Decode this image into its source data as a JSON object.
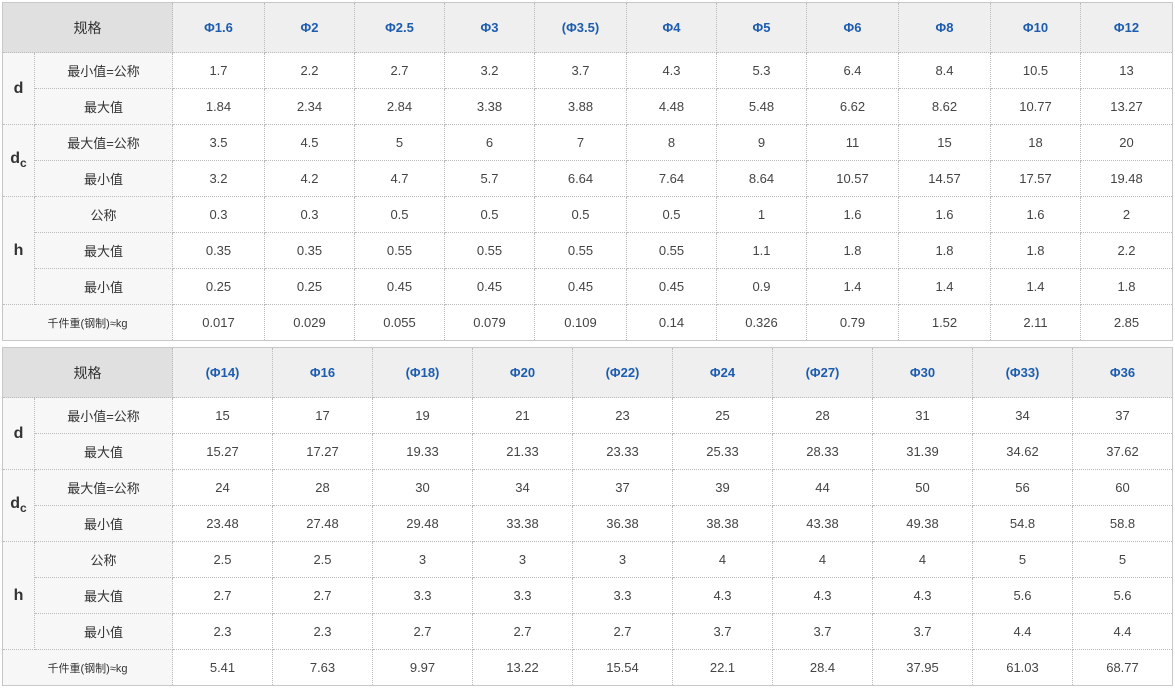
{
  "label_header": "规格",
  "groups": [
    {
      "symbol": "d",
      "sub": "",
      "rows": [
        "最小值=公称",
        "最大值"
      ]
    },
    {
      "symbol": "d",
      "sub": "c",
      "rows": [
        "最大值=公称",
        "最小值"
      ]
    },
    {
      "symbol": "h",
      "sub": "",
      "rows": [
        "公称",
        "最大值",
        "最小值"
      ]
    }
  ],
  "weight_label": "千件重(钢制)≈kg",
  "tables": [
    {
      "sizes": [
        "Φ1.6",
        "Φ2",
        "Φ2.5",
        "Φ3",
        "(Φ3.5)",
        "Φ4",
        "Φ5",
        "Φ6",
        "Φ8",
        "Φ10",
        "Φ12"
      ],
      "rows": [
        [
          "1.7",
          "2.2",
          "2.7",
          "3.2",
          "3.7",
          "4.3",
          "5.3",
          "6.4",
          "8.4",
          "10.5",
          "13"
        ],
        [
          "1.84",
          "2.34",
          "2.84",
          "3.38",
          "3.88",
          "4.48",
          "5.48",
          "6.62",
          "8.62",
          "10.77",
          "13.27"
        ],
        [
          "3.5",
          "4.5",
          "5",
          "6",
          "7",
          "8",
          "9",
          "11",
          "15",
          "18",
          "20"
        ],
        [
          "3.2",
          "4.2",
          "4.7",
          "5.7",
          "6.64",
          "7.64",
          "8.64",
          "10.57",
          "14.57",
          "17.57",
          "19.48"
        ],
        [
          "0.3",
          "0.3",
          "0.5",
          "0.5",
          "0.5",
          "0.5",
          "1",
          "1.6",
          "1.6",
          "1.6",
          "2"
        ],
        [
          "0.35",
          "0.35",
          "0.55",
          "0.55",
          "0.55",
          "0.55",
          "1.1",
          "1.8",
          "1.8",
          "1.8",
          "2.2"
        ],
        [
          "0.25",
          "0.25",
          "0.45",
          "0.45",
          "0.45",
          "0.45",
          "0.9",
          "1.4",
          "1.4",
          "1.4",
          "1.8"
        ],
        [
          "0.017",
          "0.029",
          "0.055",
          "0.079",
          "0.109",
          "0.14",
          "0.326",
          "0.79",
          "1.52",
          "2.11",
          "2.85"
        ]
      ]
    },
    {
      "sizes": [
        "(Φ14)",
        "Φ16",
        "(Φ18)",
        "Φ20",
        "(Φ22)",
        "Φ24",
        "(Φ27)",
        "Φ30",
        "(Φ33)",
        "Φ36"
      ],
      "rows": [
        [
          "15",
          "17",
          "19",
          "21",
          "23",
          "25",
          "28",
          "31",
          "34",
          "37"
        ],
        [
          "15.27",
          "17.27",
          "19.33",
          "21.33",
          "23.33",
          "25.33",
          "28.33",
          "31.39",
          "34.62",
          "37.62"
        ],
        [
          "24",
          "28",
          "30",
          "34",
          "37",
          "39",
          "44",
          "50",
          "56",
          "60"
        ],
        [
          "23.48",
          "27.48",
          "29.48",
          "33.38",
          "36.38",
          "38.38",
          "43.38",
          "49.38",
          "54.8",
          "58.8"
        ],
        [
          "2.5",
          "2.5",
          "3",
          "3",
          "3",
          "4",
          "4",
          "4",
          "5",
          "5"
        ],
        [
          "2.7",
          "2.7",
          "3.3",
          "3.3",
          "3.3",
          "4.3",
          "4.3",
          "4.3",
          "5.6",
          "5.6"
        ],
        [
          "2.3",
          "2.3",
          "2.7",
          "2.7",
          "2.7",
          "3.7",
          "3.7",
          "3.7",
          "4.4",
          "4.4"
        ],
        [
          "5.41",
          "7.63",
          "9.97",
          "13.22",
          "15.54",
          "22.1",
          "28.4",
          "37.95",
          "61.03",
          "68.77"
        ]
      ]
    }
  ]
}
